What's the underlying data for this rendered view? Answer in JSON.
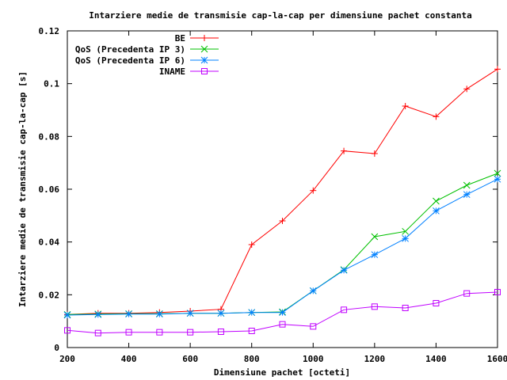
{
  "chart_data": {
    "type": "line",
    "title": "Intarziere medie de transmisie cap-la-cap per dimensiune pachet constanta",
    "xlabel": "Dimensiune pachet [octeti]",
    "ylabel": "Intarziere medie de transmisie cap-la-cap [s]",
    "xlim": [
      200,
      1600
    ],
    "ylim": [
      0,
      0.12
    ],
    "x_ticks": [
      200,
      400,
      600,
      800,
      1000,
      1200,
      1400,
      1600
    ],
    "x_tick_labels": [
      "200",
      "400",
      "600",
      "800",
      "1000",
      "1200",
      "1400",
      "1600"
    ],
    "y_ticks": [
      0,
      0.02,
      0.04,
      0.06,
      0.08,
      0.1,
      0.12
    ],
    "y_tick_labels": [
      "0",
      "0.02",
      "0.04",
      "0.06",
      "0.08",
      "0.1",
      "0.12"
    ],
    "grid": false,
    "legend_position": "top-right",
    "x": [
      200,
      300,
      400,
      500,
      600,
      700,
      800,
      900,
      1000,
      1100,
      1200,
      1300,
      1400,
      1500,
      1600
    ],
    "series": [
      {
        "name": "BE",
        "color": "#ff0000",
        "marker": "plus",
        "values": [
          0.0125,
          0.013,
          0.013,
          0.0133,
          0.0138,
          0.0145,
          0.039,
          0.048,
          0.0595,
          0.0745,
          0.0735,
          0.0915,
          0.0875,
          0.098,
          0.1055
        ]
      },
      {
        "name": "QoS (Precedenta IP 3)",
        "color": "#00c000",
        "marker": "cross",
        "values": [
          0.0125,
          0.0127,
          0.0128,
          0.0128,
          0.013,
          0.013,
          0.0133,
          0.0135,
          0.0215,
          0.0295,
          0.042,
          0.044,
          0.0555,
          0.0615,
          0.066
        ]
      },
      {
        "name": "QoS (Precedenta IP 6)",
        "color": "#0080ff",
        "marker": "star",
        "values": [
          0.0123,
          0.0125,
          0.0127,
          0.0127,
          0.013,
          0.013,
          0.0133,
          0.0133,
          0.0215,
          0.0293,
          0.0352,
          0.0413,
          0.0518,
          0.058,
          0.0638
        ]
      },
      {
        "name": "INAME",
        "color": "#c000ff",
        "marker": "square",
        "values": [
          0.0065,
          0.0055,
          0.0058,
          0.0058,
          0.0058,
          0.006,
          0.0063,
          0.0088,
          0.008,
          0.0143,
          0.0155,
          0.015,
          0.0168,
          0.0205,
          0.021
        ]
      }
    ]
  }
}
